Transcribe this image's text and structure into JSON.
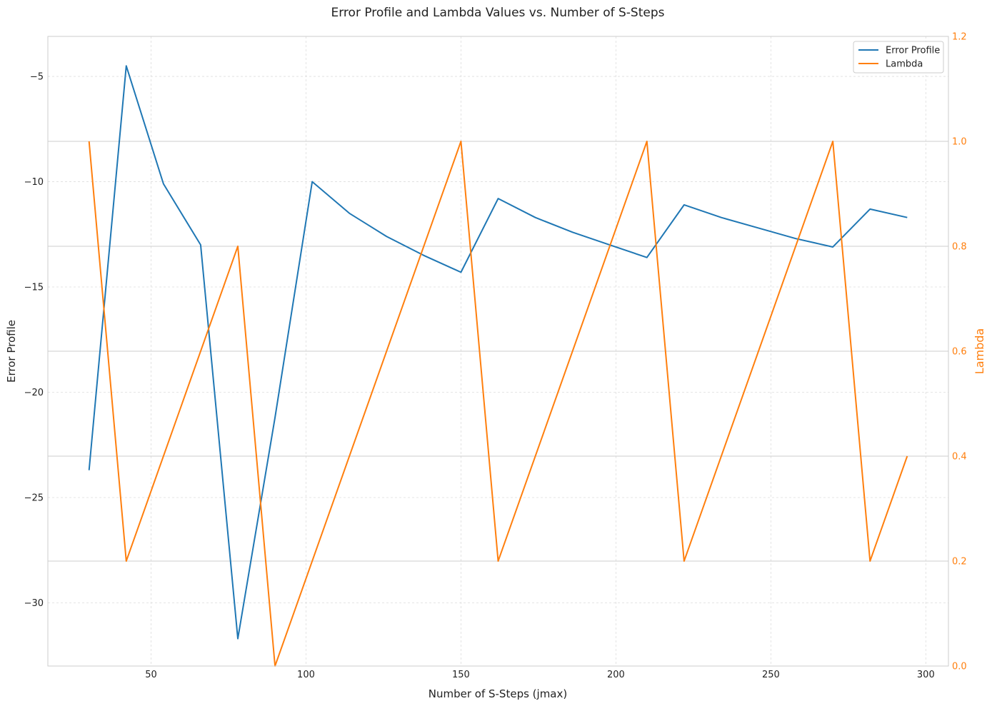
{
  "chart_data": {
    "type": "line",
    "title": "Error Profile and Lambda Values vs. Number of S-Steps",
    "xlabel": "Number of S-Steps (jmax)",
    "ylabel_left": "Error Profile",
    "ylabel_right": "Lambda",
    "xlim": [
      16.7,
      307.3
    ],
    "ylim_left": [
      -33,
      -3.1
    ],
    "ylim_right": [
      0,
      1.2
    ],
    "x_ticks": [
      50,
      100,
      150,
      200,
      250,
      300
    ],
    "y_left_ticks": [
      -5,
      -10,
      -15,
      -20,
      -25,
      -30
    ],
    "y_left_tick_labels": [
      "−5",
      "−10",
      "−15",
      "−20",
      "−25",
      "−30"
    ],
    "y_right_ticks": [
      0.0,
      0.2,
      0.4,
      0.6,
      0.8,
      1.0,
      1.2
    ],
    "y_right_tick_labels": [
      "0.0",
      "0.2",
      "0.4",
      "0.6",
      "0.8",
      "1.0",
      "1.2"
    ],
    "grid": true,
    "legend_position": "top-right",
    "series": [
      {
        "name": "Error Profile",
        "axis": "left",
        "color": "#1f77b4",
        "x": [
          30,
          42,
          54,
          66,
          78,
          90,
          102,
          114,
          126,
          138,
          150,
          162,
          174,
          186,
          198,
          210,
          222,
          234,
          246,
          258,
          270,
          282,
          294
        ],
        "y": [
          -23.7,
          -4.5,
          -10.1,
          -13.0,
          -31.7,
          -21.2,
          -10.0,
          -11.5,
          -12.6,
          -13.5,
          -14.3,
          -10.8,
          -11.7,
          -12.4,
          -13.0,
          -13.6,
          -11.1,
          -11.7,
          -12.2,
          -12.7,
          -13.1,
          -11.3,
          -11.7
        ]
      },
      {
        "name": "Lambda",
        "axis": "right",
        "color": "#ff7f0e",
        "x": [
          30,
          42,
          78,
          90,
          150,
          162,
          210,
          222,
          270,
          282,
          294
        ],
        "y": [
          1.0,
          0.2,
          0.8,
          0.0,
          1.0,
          0.2,
          1.0,
          0.2,
          1.0,
          0.2,
          0.4
        ]
      }
    ]
  }
}
